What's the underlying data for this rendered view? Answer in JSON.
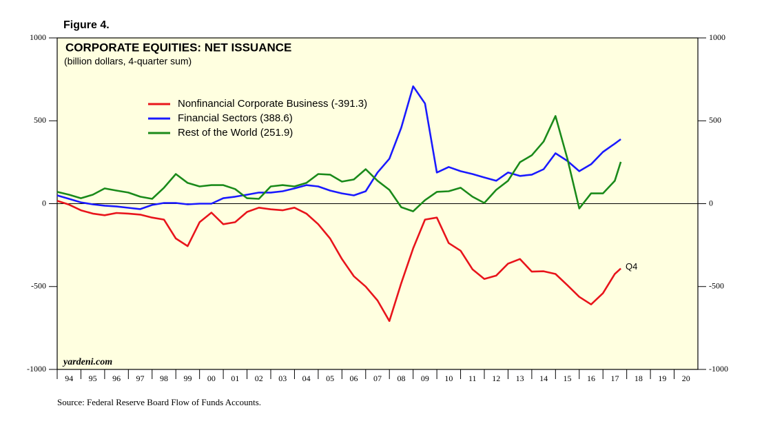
{
  "chart_data": {
    "type": "line",
    "figure_label": "Figure 4.",
    "title": "CORPORATE EQUITIES: NET ISSUANCE",
    "subtitle": "(billion dollars, 4-quarter sum)",
    "source": "Source: Federal Reserve Board Flow of Funds Accounts.",
    "watermark": "yardeni.com",
    "annotation": {
      "text": "Q4",
      "series": 0
    },
    "x": [
      1994.0,
      1994.5,
      1995.0,
      1995.5,
      1996.0,
      1996.5,
      1997.0,
      1997.5,
      1998.0,
      1998.5,
      1999.0,
      1999.5,
      2000.0,
      2000.5,
      2001.0,
      2001.5,
      2002.0,
      2002.5,
      2003.0,
      2003.5,
      2004.0,
      2004.5,
      2005.0,
      2005.5,
      2006.0,
      2006.5,
      2007.0,
      2007.5,
      2008.0,
      2008.5,
      2009.0,
      2009.5,
      2010.0,
      2010.5,
      2011.0,
      2011.5,
      2012.0,
      2012.5,
      2013.0,
      2013.5,
      2014.0,
      2014.5,
      2015.0,
      2015.5,
      2016.0,
      2016.5,
      2017.0,
      2017.5,
      2017.75
    ],
    "series": [
      {
        "name": "Nonfinancial Corporate Business (-391.3)",
        "color": "#e8141b",
        "values": [
          17,
          -6,
          -40,
          -60,
          -70,
          -56,
          -60,
          -66,
          -84,
          -96,
          -210,
          -256,
          -112,
          -54,
          -124,
          -112,
          -50,
          -24,
          -34,
          -40,
          -24,
          -60,
          -124,
          -210,
          -334,
          -438,
          -500,
          -584,
          -708,
          -480,
          -270,
          -96,
          -84,
          -238,
          -284,
          -396,
          -454,
          -434,
          -362,
          -334,
          -410,
          -408,
          -424,
          -492,
          -562,
          -608,
          -540,
          -424,
          -391.3
        ]
      },
      {
        "name": "Financial Sectors (388.6)",
        "color": "#1a1aff",
        "values": [
          50,
          29,
          8,
          -4,
          -12,
          -17,
          -25,
          -33,
          -8,
          4,
          4,
          -4,
          0,
          0,
          33,
          42,
          54,
          67,
          67,
          75,
          92,
          112,
          104,
          79,
          62,
          50,
          75,
          188,
          271,
          458,
          708,
          604,
          188,
          221,
          196,
          179,
          158,
          138,
          188,
          167,
          175,
          208,
          304,
          258,
          196,
          238,
          312,
          362,
          388.6
        ]
      },
      {
        "name": "Rest of the World (251.9)",
        "color": "#1a8a1a",
        "values": [
          71,
          54,
          33,
          54,
          92,
          79,
          67,
          42,
          29,
          96,
          179,
          125,
          104,
          112,
          112,
          88,
          33,
          29,
          104,
          112,
          104,
          125,
          179,
          175,
          133,
          146,
          208,
          138,
          83,
          -21,
          -46,
          21,
          71,
          75,
          96,
          42,
          4,
          83,
          138,
          250,
          292,
          375,
          529,
          271,
          -29,
          62,
          62,
          138,
          251.9
        ]
      }
    ],
    "xlim": [
      1994,
      2021
    ],
    "xticks": [
      {
        "value": 1994.5,
        "label": "94"
      },
      {
        "value": 1995.5,
        "label": "95"
      },
      {
        "value": 1996.5,
        "label": "96"
      },
      {
        "value": 1997.5,
        "label": "97"
      },
      {
        "value": 1998.5,
        "label": "98"
      },
      {
        "value": 1999.5,
        "label": "99"
      },
      {
        "value": 2000.5,
        "label": "00"
      },
      {
        "value": 2001.5,
        "label": "01"
      },
      {
        "value": 2002.5,
        "label": "02"
      },
      {
        "value": 2003.5,
        "label": "03"
      },
      {
        "value": 2004.5,
        "label": "04"
      },
      {
        "value": 2005.5,
        "label": "05"
      },
      {
        "value": 2006.5,
        "label": "06"
      },
      {
        "value": 2007.5,
        "label": "07"
      },
      {
        "value": 2008.5,
        "label": "08"
      },
      {
        "value": 2009.5,
        "label": "09"
      },
      {
        "value": 2010.5,
        "label": "10"
      },
      {
        "value": 2011.5,
        "label": "11"
      },
      {
        "value": 2012.5,
        "label": "12"
      },
      {
        "value": 2013.5,
        "label": "13"
      },
      {
        "value": 2014.5,
        "label": "14"
      },
      {
        "value": 2015.5,
        "label": "15"
      },
      {
        "value": 2016.5,
        "label": "16"
      },
      {
        "value": 2017.5,
        "label": "17"
      },
      {
        "value": 2018.5,
        "label": "18"
      },
      {
        "value": 2019.5,
        "label": "19"
      },
      {
        "value": 2020.5,
        "label": "20"
      }
    ],
    "ylim": [
      -1000,
      1000
    ],
    "yticks": [
      -1000,
      -500,
      0,
      500,
      1000
    ],
    "background": "#ffffe0"
  }
}
